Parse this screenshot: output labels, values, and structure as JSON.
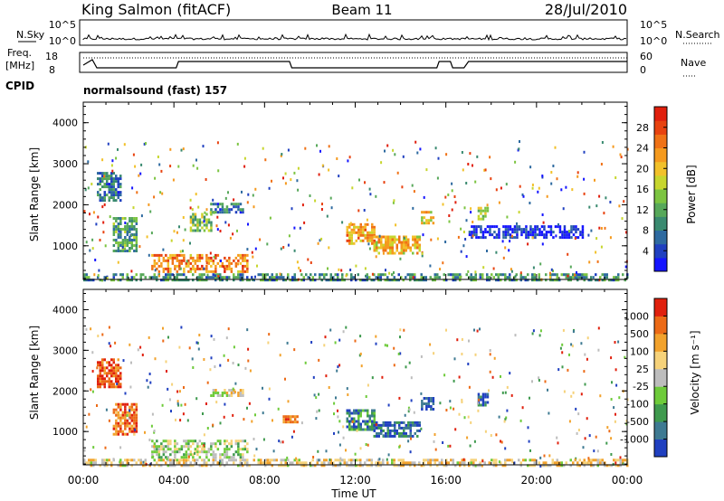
{
  "header": {
    "station": "King Salmon (fitACF)",
    "beam": "Beam 11",
    "date": "28/Jul/2010"
  },
  "top_panels": {
    "noise": {
      "left_label": "N.Sky",
      "right_label": "N.Search",
      "left_ticks": [
        "10^5",
        "10^0"
      ],
      "right_ticks": [
        "10^5",
        "10^0"
      ]
    },
    "freq": {
      "left_label_line1": "Freq.",
      "left_label_line2": "[MHz]",
      "left_ticks": [
        "18",
        "8"
      ],
      "right_label": "Nave",
      "right_ticks": [
        "60",
        "0"
      ],
      "cpid_label": "CPID",
      "cpid_text": "normalsound (fast) 157"
    }
  },
  "chart_data": [
    {
      "type": "heatmap",
      "panel": "power",
      "ylabel": "Slant Range [km]",
      "xlabel": "",
      "ylim": [
        180,
        4500
      ],
      "y_ticks": [
        "1000",
        "2000",
        "3000",
        "4000"
      ],
      "x_ticks": [
        "00:00",
        "04:00",
        "08:00",
        "12:00",
        "16:00",
        "20:00",
        "00:00"
      ],
      "colorbar": {
        "label": "Power [dB]",
        "ticks": [
          "4",
          "8",
          "12",
          "16",
          "20",
          "24",
          "28"
        ],
        "colors": [
          "#1515ff",
          "#2040c0",
          "#2e6aa0",
          "#3a8a70",
          "#57a85a",
          "#7cc441",
          "#c7d62e",
          "#f2c12a",
          "#f59a1e",
          "#f07216",
          "#e8420f",
          "#e01f0d"
        ]
      },
      "regions": [
        {
          "t": [
            0.6,
            1.6
          ],
          "r": [
            2100,
            2800
          ],
          "level": 0.25
        },
        {
          "t": [
            1.3,
            2.3
          ],
          "r": [
            900,
            1700
          ],
          "level": 0.35
        },
        {
          "t": [
            3.0,
            7.2
          ],
          "r": [
            350,
            800
          ],
          "level": 0.75
        },
        {
          "t": [
            4.7,
            5.6
          ],
          "r": [
            1400,
            1800
          ],
          "level": 0.45
        },
        {
          "t": [
            5.6,
            7.0
          ],
          "r": [
            1850,
            2050
          ],
          "level": 0.25
        },
        {
          "t": [
            11.6,
            12.8
          ],
          "r": [
            1050,
            1550
          ],
          "level": 0.7
        },
        {
          "t": [
            12.8,
            14.8
          ],
          "r": [
            850,
            1250
          ],
          "level": 0.65
        },
        {
          "t": [
            14.9,
            15.4
          ],
          "r": [
            1550,
            1850
          ],
          "level": 0.6
        },
        {
          "t": [
            17.4,
            17.8
          ],
          "r": [
            1650,
            1950
          ],
          "level": 0.5
        },
        {
          "t": [
            17.0,
            22.0
          ],
          "r": [
            1200,
            1500
          ],
          "level": 0.05
        },
        {
          "t": [
            0.0,
            24.0
          ],
          "r": [
            180,
            330
          ],
          "level": 0.3
        }
      ]
    },
    {
      "type": "heatmap",
      "panel": "velocity",
      "ylabel": "Slant Range [km]",
      "xlabel": "Time UT",
      "ylim": [
        180,
        4500
      ],
      "y_ticks": [
        "1000",
        "2000",
        "3000",
        "4000"
      ],
      "x_ticks": [
        "00:00",
        "04:00",
        "08:00",
        "12:00",
        "16:00",
        "20:00",
        "00:00"
      ],
      "colorbar": {
        "label": "Velocity [m s⁻¹]",
        "ticks": [
          "1000",
          "500",
          "100",
          "25",
          "-25",
          "-100",
          "-500",
          "-1000"
        ],
        "colors": [
          "#2040c0",
          "#3e7a92",
          "#3f9a4e",
          "#6ecb3a",
          "#bdbdbd",
          "#f6d27a",
          "#f2a22c",
          "#ec6a16",
          "#e0200d"
        ]
      },
      "regions": [
        {
          "t": [
            0.6,
            1.6
          ],
          "r": [
            2100,
            2800
          ],
          "level": 0.9
        },
        {
          "t": [
            1.3,
            2.3
          ],
          "r": [
            900,
            1700
          ],
          "level": 0.8
        },
        {
          "t": [
            3.0,
            7.2
          ],
          "r": [
            350,
            800
          ],
          "level": 0.45
        },
        {
          "t": [
            5.6,
            7.0
          ],
          "r": [
            1850,
            2050
          ],
          "level": 0.55
        },
        {
          "t": [
            11.6,
            12.8
          ],
          "r": [
            1050,
            1550
          ],
          "level": 0.2
        },
        {
          "t": [
            12.8,
            14.8
          ],
          "r": [
            850,
            1250
          ],
          "level": 0.12
        },
        {
          "t": [
            14.9,
            15.4
          ],
          "r": [
            1550,
            1850
          ],
          "level": 0.05
        },
        {
          "t": [
            17.4,
            17.8
          ],
          "r": [
            1650,
            1950
          ],
          "level": 0.1
        },
        {
          "t": [
            8.8,
            9.4
          ],
          "r": [
            1200,
            1400
          ],
          "level": 0.85
        },
        {
          "t": [
            0.0,
            24.0
          ],
          "r": [
            180,
            330
          ],
          "level": 0.6
        }
      ]
    }
  ]
}
